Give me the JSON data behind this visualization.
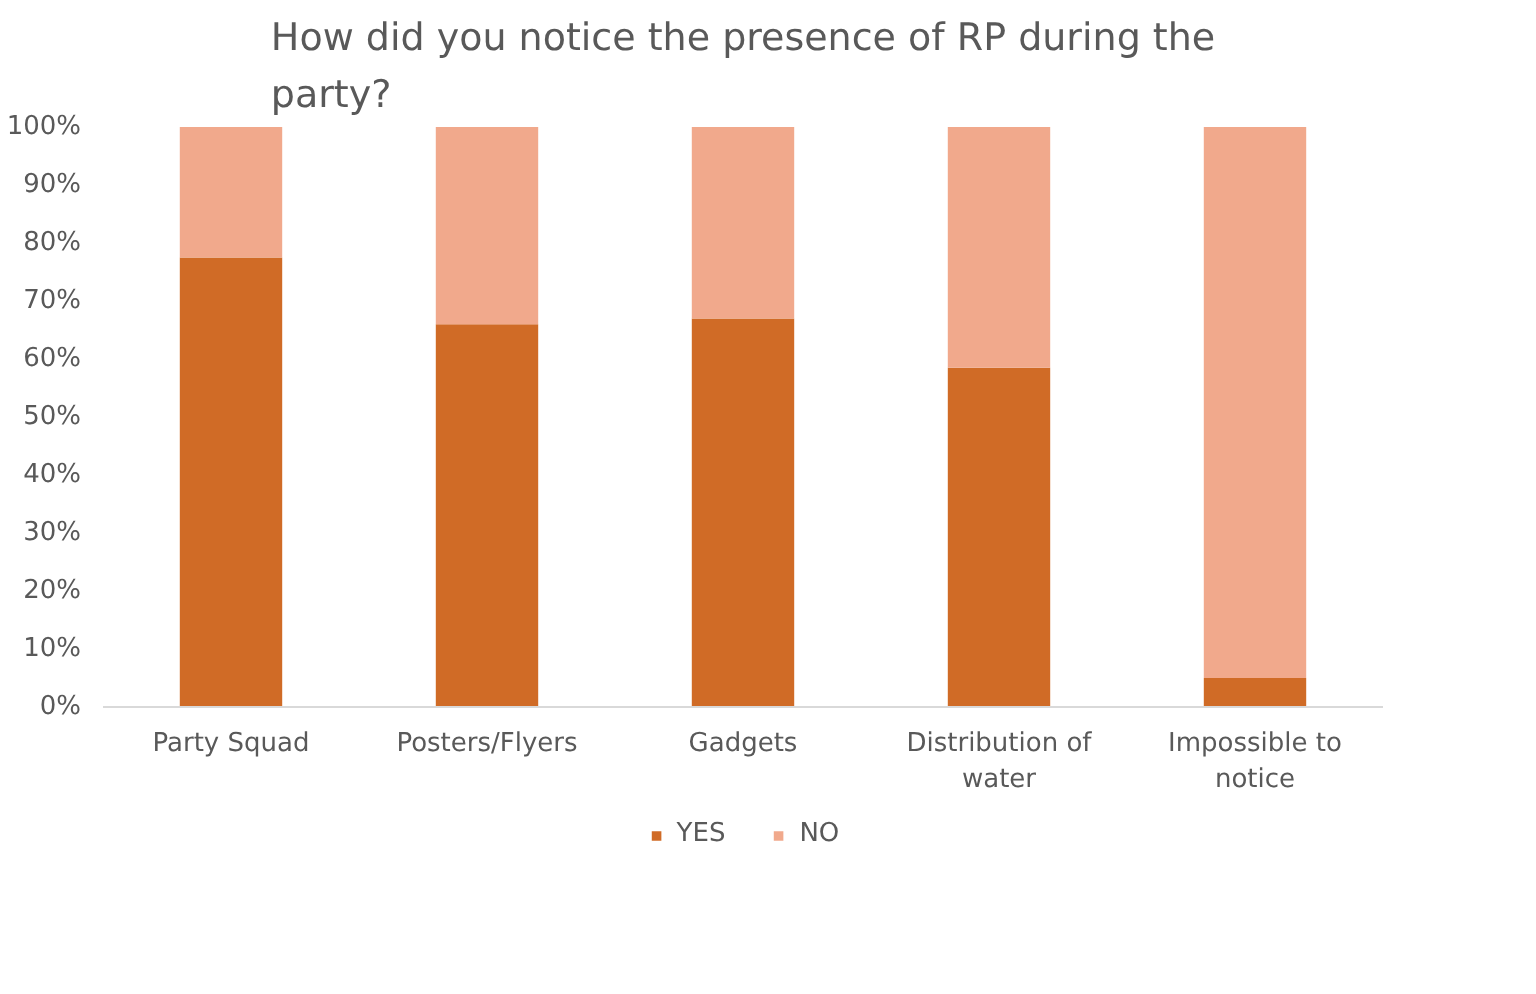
{
  "chart_data": {
    "type": "bar",
    "title": "How did you notice the presence of RP during the party?",
    "categories": [
      "Party Squad",
      "Posters/Flyers",
      "Gadgets",
      "Distribution of water",
      "Impossible to notice"
    ],
    "stacked": true,
    "series": [
      {
        "name": "YES",
        "color": "#d06b26",
        "values": [
          77.5,
          66,
          67,
          58.5,
          5
        ]
      },
      {
        "name": "NO",
        "color": "#f1a98c",
        "values": [
          22.5,
          34,
          33,
          41.5,
          95
        ]
      }
    ],
    "ylim": [
      0,
      100
    ],
    "yticks": [
      {
        "value": 0,
        "label": "0%"
      },
      {
        "value": 10,
        "label": "10%"
      },
      {
        "value": 20,
        "label": "20%"
      },
      {
        "value": 30,
        "label": "30%"
      },
      {
        "value": 40,
        "label": "40%"
      },
      {
        "value": 50,
        "label": "50%"
      },
      {
        "value": 60,
        "label": "60%"
      },
      {
        "value": 70,
        "label": "70%"
      },
      {
        "value": 80,
        "label": "80%"
      },
      {
        "value": 90,
        "label": "90%"
      },
      {
        "value": 100,
        "label": "100%"
      }
    ],
    "grid": false,
    "legend": "bottom"
  }
}
